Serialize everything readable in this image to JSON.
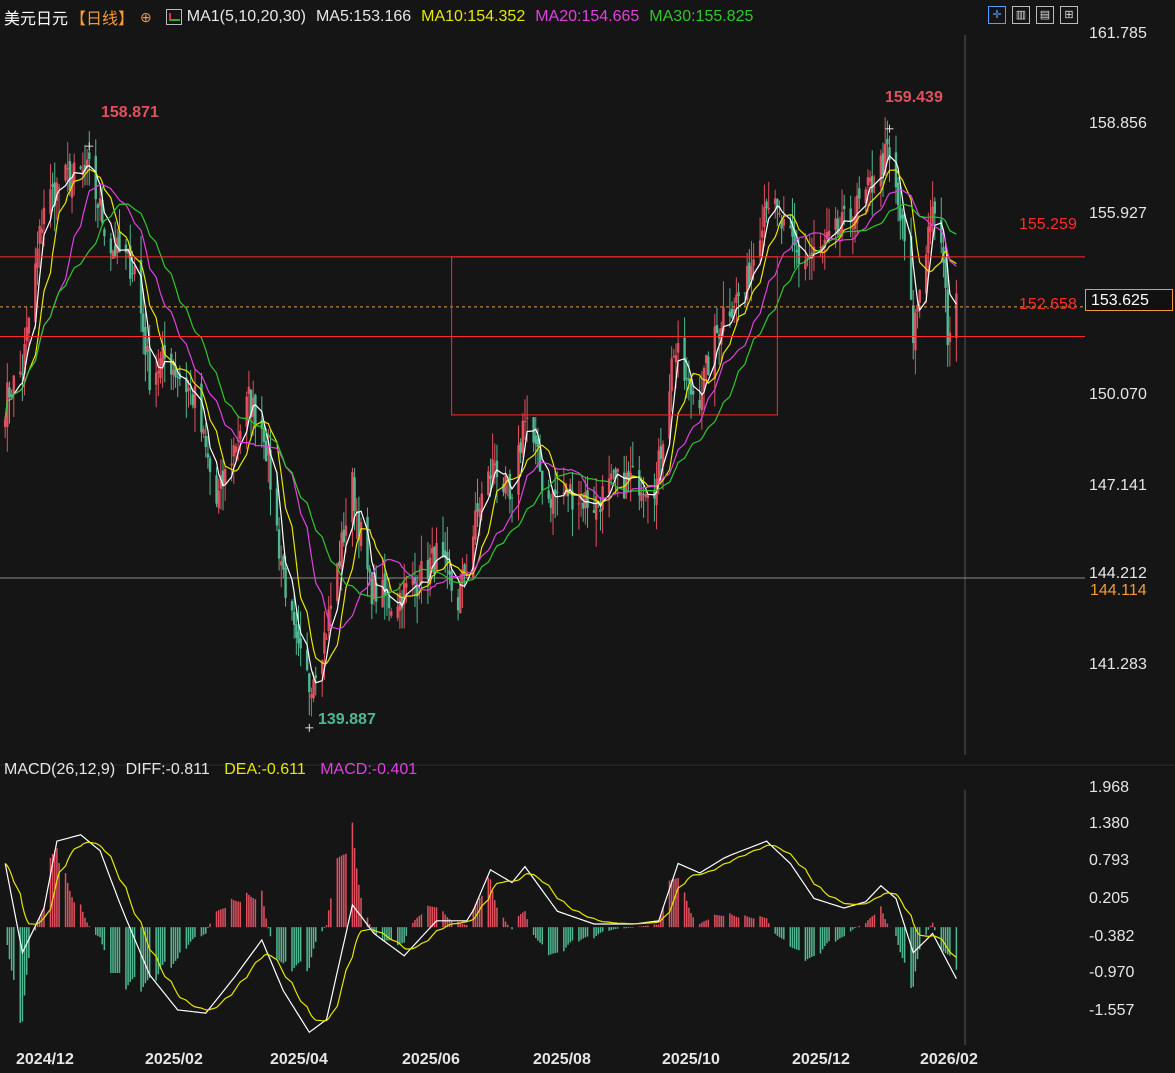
{
  "header": {
    "symbol": "美元日元",
    "period": "【日线】",
    "add_icon": "⊕",
    "ma_group": "MA1(5,10,20,30)",
    "ma5": "MA5:153.166",
    "ma10": "MA10:154.352",
    "ma20": "MA20:154.665",
    "ma30": "MA30:155.825",
    "colors": {
      "ma5": "#ffffff",
      "ma10": "#e6e600",
      "ma20": "#e040e0",
      "ma30": "#2ec82e",
      "up": "#e0505f",
      "down": "#4fb891",
      "level": "#ff2a2a",
      "accent": "#f29a3c"
    }
  },
  "toolbar": {
    "icons": [
      "crosshair-icon",
      "layout-icon",
      "chart-type-icon",
      "expand-icon"
    ]
  },
  "price_axis": {
    "ticks": [
      "161.785",
      "158.856",
      "155.927",
      "150.070",
      "147.141",
      "144.212",
      "141.283"
    ],
    "current": "153.625",
    "crosshair": "144.114"
  },
  "levels": {
    "upper": "155.259",
    "lower": "152.658"
  },
  "highs_lows": {
    "high1": "158.871",
    "high2": "159.439",
    "low": "139.887"
  },
  "macd": {
    "title": "MACD(26,12,9)",
    "diff": "DIFF:-0.811",
    "dea": "DEA:-0.611",
    "macd": "MACD:-0.401",
    "ticks": [
      "1.968",
      "1.380",
      "0.793",
      "0.205",
      "-0.382",
      "-0.970",
      "-1.557"
    ]
  },
  "x_axis": [
    "2024/12",
    "2025/02",
    "2025/04",
    "2025/06",
    "2025/08",
    "2025/10",
    "2025/12",
    "2026/02"
  ],
  "chart_data": {
    "type": "line",
    "title": "",
    "price_range": [
      139.0,
      162.5
    ],
    "macd_range": [
      -1.85,
      2.2
    ],
    "nodes": [
      {
        "d": "2024-12-02",
        "c": 150.5
      },
      {
        "d": "2024-12-04",
        "c": 150.9
      },
      {
        "d": "2024-12-10",
        "c": 151.6
      },
      {
        "d": "2024-12-20",
        "c": 157.0
      },
      {
        "d": "2024-12-30",
        "c": 157.8
      },
      {
        "d": "2025-01-10",
        "c": 158.0
      },
      {
        "d": "2025-01-20",
        "c": 155.6
      },
      {
        "d": "2025-01-31",
        "c": 154.9
      },
      {
        "d": "2025-02-07",
        "c": 151.4
      },
      {
        "d": "2025-02-15",
        "c": 152.0
      },
      {
        "d": "2025-02-28",
        "c": 150.6
      },
      {
        "d": "2025-03-10",
        "c": 147.2
      },
      {
        "d": "2025-03-25",
        "c": 150.6
      },
      {
        "d": "2025-04-01",
        "c": 149.6
      },
      {
        "d": "2025-04-08",
        "c": 145.8
      },
      {
        "d": "2025-04-16",
        "c": 142.4
      },
      {
        "d": "2025-04-22",
        "c": 141.3
      },
      {
        "d": "2025-04-30",
        "c": 143.1
      },
      {
        "d": "2025-05-12",
        "c": 147.8
      },
      {
        "d": "2025-05-20",
        "c": 144.5
      },
      {
        "d": "2025-05-30",
        "c": 144.0
      },
      {
        "d": "2025-06-10",
        "c": 144.6
      },
      {
        "d": "2025-06-20",
        "c": 145.5
      },
      {
        "d": "2025-06-30",
        "c": 144.0
      },
      {
        "d": "2025-07-10",
        "c": 147.2
      },
      {
        "d": "2025-07-17",
        "c": 148.6
      },
      {
        "d": "2025-07-25",
        "c": 147.0
      },
      {
        "d": "2025-07-31",
        "c": 150.3
      },
      {
        "d": "2025-08-10",
        "c": 147.4
      },
      {
        "d": "2025-08-20",
        "c": 147.6
      },
      {
        "d": "2025-09-01",
        "c": 147.2
      },
      {
        "d": "2025-09-10",
        "c": 147.8
      },
      {
        "d": "2025-09-20",
        "c": 148.0
      },
      {
        "d": "2025-09-30",
        "c": 147.9
      },
      {
        "d": "2025-10-08",
        "c": 152.3
      },
      {
        "d": "2025-10-15",
        "c": 150.9
      },
      {
        "d": "2025-10-20",
        "c": 150.8
      },
      {
        "d": "2025-10-31",
        "c": 153.5
      },
      {
        "d": "2025-11-10",
        "c": 154.1
      },
      {
        "d": "2025-11-20",
        "c": 157.3
      },
      {
        "d": "2025-11-28",
        "c": 156.1
      },
      {
        "d": "2025-12-05",
        "c": 155.2
      },
      {
        "d": "2025-12-15",
        "c": 155.4
      },
      {
        "d": "2025-12-26",
        "c": 156.3
      },
      {
        "d": "2026-01-05",
        "c": 157.2
      },
      {
        "d": "2026-01-10",
        "c": 158.0
      },
      {
        "d": "2026-01-15",
        "c": 158.6
      },
      {
        "d": "2026-01-19",
        "c": 157.3
      },
      {
        "d": "2026-01-23",
        "c": 155.7
      },
      {
        "d": "2026-01-27",
        "c": 152.7
      },
      {
        "d": "2026-01-30",
        "c": 154.3
      },
      {
        "d": "2026-02-04",
        "c": 156.6
      },
      {
        "d": "2026-02-09",
        "c": 155.9
      },
      {
        "d": "2026-02-12",
        "c": 152.8
      },
      {
        "d": "2026-02-16",
        "c": 153.6
      }
    ],
    "macd_nodes": [
      {
        "d": "2024-12-02",
        "m": 1.0
      },
      {
        "d": "2024-12-10",
        "m": -0.4
      },
      {
        "d": "2024-12-20",
        "m": 0.3
      },
      {
        "d": "2024-12-26",
        "m": 1.35
      },
      {
        "d": "2025-01-06",
        "m": 1.45
      },
      {
        "d": "2025-01-15",
        "m": 1.2
      },
      {
        "d": "2025-01-25",
        "m": 0.3
      },
      {
        "d": "2025-02-07",
        "m": -0.75
      },
      {
        "d": "2025-02-20",
        "m": -1.3
      },
      {
        "d": "2025-03-05",
        "m": -1.35
      },
      {
        "d": "2025-03-18",
        "m": -0.8
      },
      {
        "d": "2025-03-31",
        "m": -0.2
      },
      {
        "d": "2025-04-10",
        "m": -1.0
      },
      {
        "d": "2025-04-22",
        "m": -1.65
      },
      {
        "d": "2025-04-30",
        "m": -1.45
      },
      {
        "d": "2025-05-12",
        "m": 0.35
      },
      {
        "d": "2025-05-22",
        "m": -0.1
      },
      {
        "d": "2025-06-05",
        "m": -0.45
      },
      {
        "d": "2025-06-20",
        "m": 0.1
      },
      {
        "d": "2025-07-05",
        "m": 0.1
      },
      {
        "d": "2025-07-15",
        "m": 0.9
      },
      {
        "d": "2025-07-25",
        "m": 0.7
      },
      {
        "d": "2025-07-31",
        "m": 0.95
      },
      {
        "d": "2025-08-15",
        "m": 0.25
      },
      {
        "d": "2025-09-01",
        "m": 0.05
      },
      {
        "d": "2025-09-20",
        "m": 0.05
      },
      {
        "d": "2025-10-01",
        "m": 0.1
      },
      {
        "d": "2025-10-10",
        "m": 1.0
      },
      {
        "d": "2025-10-20",
        "m": 0.85
      },
      {
        "d": "2025-11-01",
        "m": 1.1
      },
      {
        "d": "2025-11-20",
        "m": 1.35
      },
      {
        "d": "2025-12-01",
        "m": 1.0
      },
      {
        "d": "2025-12-12",
        "m": 0.45
      },
      {
        "d": "2025-12-26",
        "m": 0.3
      },
      {
        "d": "2026-01-05",
        "m": 0.4
      },
      {
        "d": "2026-01-12",
        "m": 0.65
      },
      {
        "d": "2026-01-19",
        "m": 0.45
      },
      {
        "d": "2026-01-27",
        "m": -0.4
      },
      {
        "d": "2026-02-05",
        "m": -0.1
      },
      {
        "d": "2026-02-16",
        "m": -0.81
      }
    ]
  }
}
